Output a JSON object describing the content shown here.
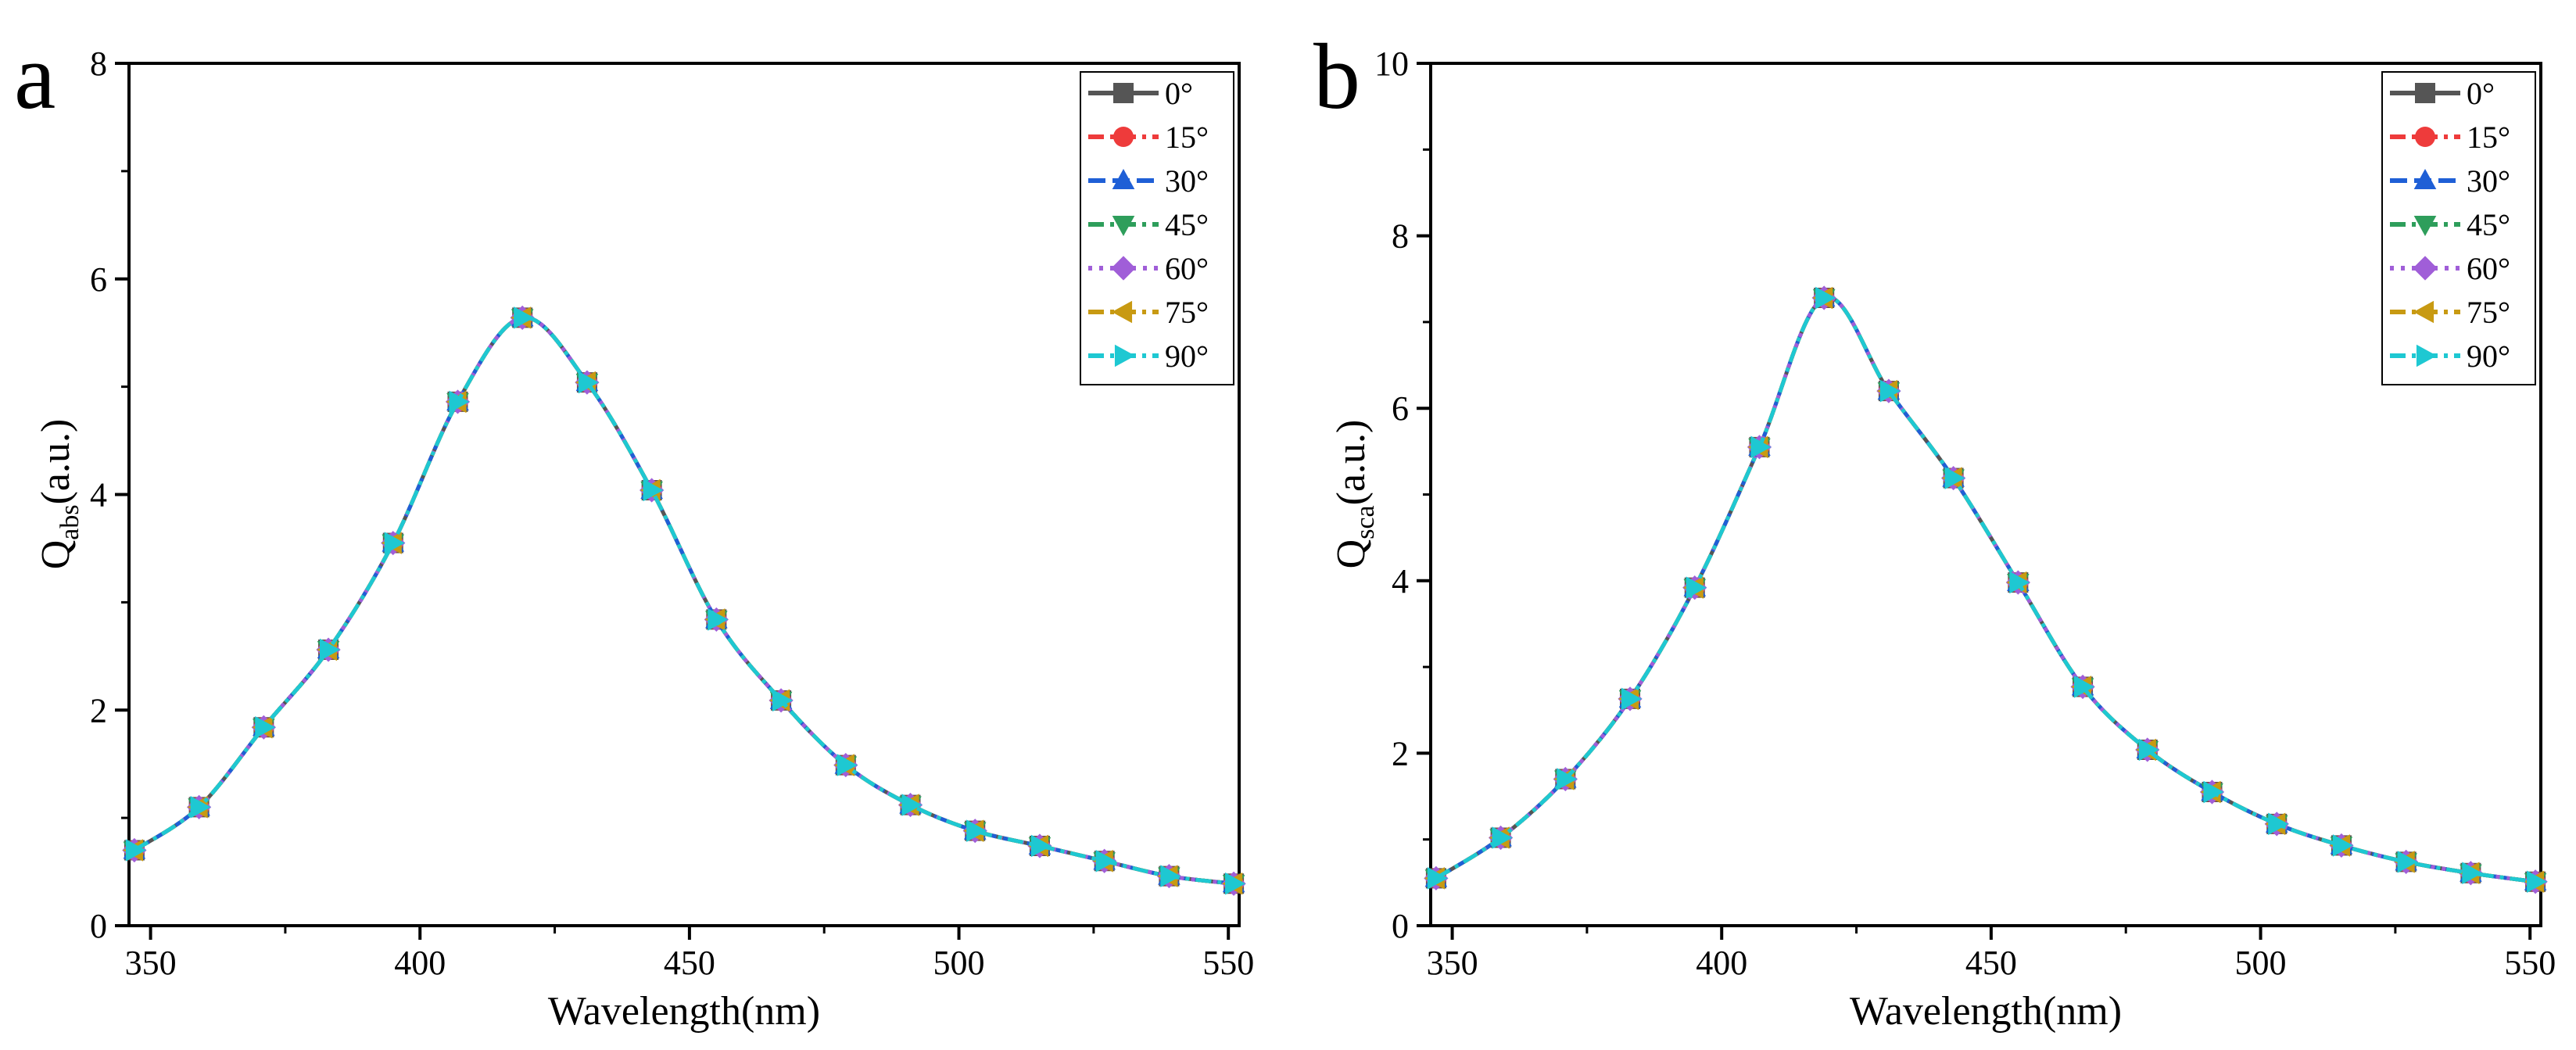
{
  "figure": {
    "panel_labels": [
      "a",
      "b"
    ]
  },
  "series_styles": [
    {
      "name": "0°",
      "color": "#555555",
      "marker": "square",
      "dash": "solid"
    },
    {
      "name": "15°",
      "color": "#ee3b3b",
      "marker": "circle",
      "dash": "dashdot"
    },
    {
      "name": "30°",
      "color": "#1f5fd6",
      "marker": "triangle-up",
      "dash": "dash"
    },
    {
      "name": "45°",
      "color": "#2e9e5b",
      "marker": "triangle-down",
      "dash": "dashdot"
    },
    {
      "name": "60°",
      "color": "#a05ed8",
      "marker": "diamond",
      "dash": "dot"
    },
    {
      "name": "75°",
      "color": "#c89a12",
      "marker": "triangle-left",
      "dash": "dashdot"
    },
    {
      "name": "90°",
      "color": "#1ec8d2",
      "marker": "triangle-right",
      "dash": "dashdot"
    }
  ],
  "chart_data": [
    {
      "type": "line",
      "panel": "a",
      "title": "",
      "xlabel": "Wavelength(nm)",
      "ylabel_main": "Q",
      "ylabel_sub": "abs",
      "ylabel_suffix": "(a.u.)",
      "xlim": [
        346,
        552
      ],
      "ylim": [
        0,
        8
      ],
      "xticks": [
        350,
        400,
        450,
        500,
        550
      ],
      "yticks": [
        0,
        2,
        4,
        6,
        8
      ],
      "legend_position": "top-right",
      "x": [
        347,
        359,
        371,
        383,
        395,
        407,
        419,
        431,
        443,
        455,
        467,
        479,
        491,
        503,
        515,
        527,
        539,
        551
      ],
      "series": [
        {
          "name": "0°",
          "values": [
            0.7,
            1.1,
            1.84,
            2.56,
            3.55,
            4.86,
            5.64,
            5.04,
            4.04,
            2.84,
            2.09,
            1.49,
            1.12,
            0.88,
            0.74,
            0.6,
            0.46,
            0.39
          ]
        },
        {
          "name": "15°",
          "values": [
            0.7,
            1.1,
            1.84,
            2.56,
            3.55,
            4.86,
            5.64,
            5.04,
            4.04,
            2.84,
            2.09,
            1.49,
            1.12,
            0.88,
            0.74,
            0.6,
            0.46,
            0.39
          ]
        },
        {
          "name": "30°",
          "values": [
            0.7,
            1.1,
            1.84,
            2.56,
            3.55,
            4.86,
            5.64,
            5.04,
            4.04,
            2.84,
            2.09,
            1.49,
            1.12,
            0.88,
            0.74,
            0.6,
            0.46,
            0.39
          ]
        },
        {
          "name": "45°",
          "values": [
            0.7,
            1.1,
            1.84,
            2.56,
            3.55,
            4.86,
            5.64,
            5.04,
            4.04,
            2.84,
            2.09,
            1.49,
            1.12,
            0.88,
            0.74,
            0.6,
            0.46,
            0.39
          ]
        },
        {
          "name": "60°",
          "values": [
            0.7,
            1.1,
            1.84,
            2.56,
            3.55,
            4.86,
            5.64,
            5.04,
            4.04,
            2.84,
            2.09,
            1.49,
            1.12,
            0.88,
            0.74,
            0.6,
            0.46,
            0.39
          ]
        },
        {
          "name": "75°",
          "values": [
            0.7,
            1.1,
            1.84,
            2.56,
            3.55,
            4.86,
            5.64,
            5.04,
            4.04,
            2.84,
            2.09,
            1.49,
            1.12,
            0.88,
            0.74,
            0.6,
            0.46,
            0.39
          ]
        },
        {
          "name": "90°",
          "values": [
            0.7,
            1.1,
            1.84,
            2.56,
            3.55,
            4.86,
            5.64,
            5.04,
            4.04,
            2.84,
            2.09,
            1.49,
            1.12,
            0.88,
            0.74,
            0.6,
            0.46,
            0.39
          ]
        }
      ]
    },
    {
      "type": "line",
      "panel": "b",
      "title": "",
      "xlabel": "Wavelength(nm)",
      "ylabel_main": "Q",
      "ylabel_sub": "sca",
      "ylabel_suffix": "(a.u.)",
      "xlim": [
        346,
        552
      ],
      "ylim": [
        0,
        10
      ],
      "xticks": [
        350,
        400,
        450,
        500,
        550
      ],
      "yticks": [
        0,
        2,
        4,
        6,
        8,
        10
      ],
      "legend_position": "top-right",
      "x": [
        347,
        359,
        371,
        383,
        395,
        407,
        419,
        431,
        443,
        455,
        467,
        479,
        491,
        503,
        515,
        527,
        539,
        551
      ],
      "series": [
        {
          "name": "0°",
          "values": [
            0.55,
            1.02,
            1.7,
            2.63,
            3.92,
            5.55,
            7.28,
            6.2,
            5.19,
            3.98,
            2.77,
            2.04,
            1.55,
            1.18,
            0.93,
            0.74,
            0.61,
            0.51
          ]
        },
        {
          "name": "15°",
          "values": [
            0.55,
            1.02,
            1.7,
            2.63,
            3.92,
            5.55,
            7.28,
            6.2,
            5.19,
            3.98,
            2.77,
            2.04,
            1.55,
            1.18,
            0.93,
            0.74,
            0.61,
            0.51
          ]
        },
        {
          "name": "30°",
          "values": [
            0.55,
            1.02,
            1.7,
            2.63,
            3.92,
            5.55,
            7.28,
            6.2,
            5.19,
            3.98,
            2.77,
            2.04,
            1.55,
            1.18,
            0.93,
            0.74,
            0.61,
            0.51
          ]
        },
        {
          "name": "45°",
          "values": [
            0.55,
            1.02,
            1.7,
            2.63,
            3.92,
            5.55,
            7.28,
            6.2,
            5.19,
            3.98,
            2.77,
            2.04,
            1.55,
            1.18,
            0.93,
            0.74,
            0.61,
            0.51
          ]
        },
        {
          "name": "60°",
          "values": [
            0.55,
            1.02,
            1.7,
            2.63,
            3.92,
            5.55,
            7.28,
            6.2,
            5.19,
            3.98,
            2.77,
            2.04,
            1.55,
            1.18,
            0.93,
            0.74,
            0.61,
            0.51
          ]
        },
        {
          "name": "75°",
          "values": [
            0.55,
            1.02,
            1.7,
            2.63,
            3.92,
            5.55,
            7.28,
            6.2,
            5.19,
            3.98,
            2.77,
            2.04,
            1.55,
            1.18,
            0.93,
            0.74,
            0.61,
            0.51
          ]
        },
        {
          "name": "90°",
          "values": [
            0.55,
            1.02,
            1.7,
            2.63,
            3.92,
            5.55,
            7.28,
            6.2,
            5.19,
            3.98,
            2.77,
            2.04,
            1.55,
            1.18,
            0.93,
            0.74,
            0.61,
            0.51
          ]
        }
      ]
    }
  ]
}
